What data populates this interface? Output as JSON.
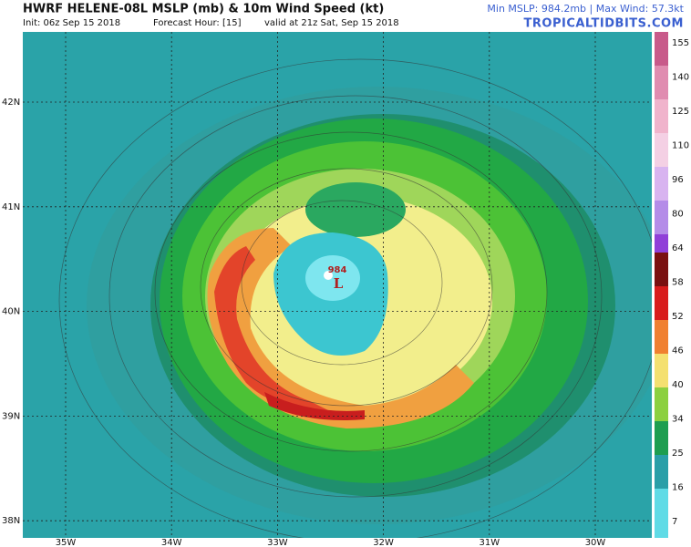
{
  "header": {
    "title": "HWRF HELENE-08L MSLP (mb) & 10m Wind Speed (kt)",
    "init": "Init: 06z Sep 15 2018",
    "forecast_hour": "Forecast Hour: [15]",
    "valid": "valid at 21z Sat, Sep 15 2018",
    "stats": "Min MSLP: 984.2mb | Max Wind: 57.3kt",
    "site": "TROPICALTIDBITS.COM"
  },
  "map": {
    "latitudes": [
      "42N",
      "41N",
      "40N",
      "39N",
      "38N"
    ],
    "longitudes": [
      "35W",
      "34W",
      "33W",
      "32W",
      "31W",
      "30W"
    ],
    "low": {
      "pressure": "984",
      "symbol": "L"
    }
  },
  "colorbar": {
    "labels": [
      "155",
      "140",
      "125",
      "110",
      "96",
      "80",
      "64",
      "58",
      "52",
      "46",
      "40",
      "34",
      "25",
      "16",
      "7"
    ]
  }
}
